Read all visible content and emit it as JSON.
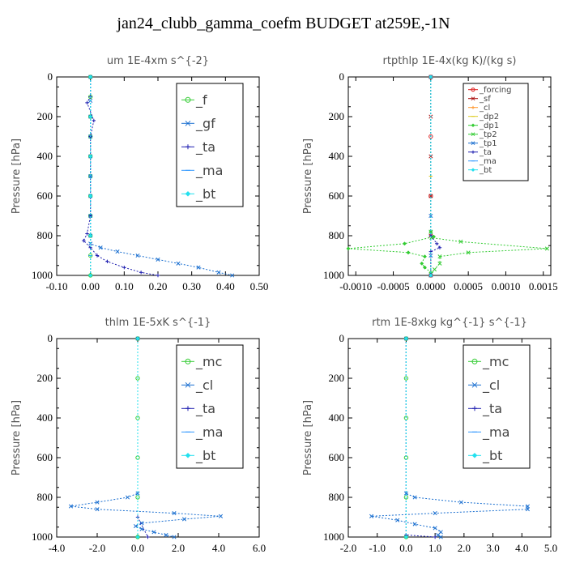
{
  "page": {
    "title": "jan24_clubb_gamma_coefm  BUDGET at259E,-1N"
  },
  "colors": {
    "green": "#33cc33",
    "blue": "#1a6fd0",
    "navy": "#1f1fb0",
    "lightblue": "#3399ff",
    "cyan": "#22e0ee",
    "red": "#dd2222",
    "darkred": "#aa1111",
    "orange": "#ff9933",
    "yellow": "#ddcc22",
    "axis": "#000000"
  },
  "chart_data": [
    {
      "type": "line",
      "title": "um  1E-4xm s^{-2}",
      "ylabel": "Pressure [hPa]",
      "xlim": [
        -0.1,
        0.5
      ],
      "ylim": [
        1000,
        0
      ],
      "xticks": [
        "-0.10",
        "0.00",
        "0.10",
        "0.20",
        "0.30",
        "0.40",
        "0.50"
      ],
      "yticks": [
        "0",
        "200",
        "400",
        "600",
        "800",
        "1000"
      ],
      "legend_position": "top-right",
      "series": [
        {
          "name": "_f",
          "color": "green",
          "marker": "o",
          "points": [
            [
              0.0,
              0
            ],
            [
              0.0,
              100
            ],
            [
              0.0,
              200
            ],
            [
              0.0,
              300
            ],
            [
              0.0,
              400
            ],
            [
              0.0,
              500
            ],
            [
              0.0,
              600
            ],
            [
              0.0,
              700
            ],
            [
              0.0,
              800
            ],
            [
              0.0,
              900
            ],
            [
              0.0,
              1000
            ]
          ]
        },
        {
          "name": "_gf",
          "color": "blue",
          "marker": "x",
          "points": [
            [
              0.0,
              0
            ],
            [
              0.0,
              120
            ],
            [
              0.0,
              200
            ],
            [
              0.0,
              300
            ],
            [
              0.0,
              400
            ],
            [
              0.0,
              500
            ],
            [
              0.0,
              600
            ],
            [
              0.0,
              700
            ],
            [
              0.0,
              800
            ],
            [
              0.0,
              840
            ],
            [
              0.03,
              860
            ],
            [
              0.08,
              880
            ],
            [
              0.14,
              900
            ],
            [
              0.2,
              920
            ],
            [
              0.26,
              940
            ],
            [
              0.32,
              960
            ],
            [
              0.38,
              985
            ],
            [
              0.42,
              1000
            ]
          ]
        },
        {
          "name": "_ta",
          "color": "navy",
          "marker": "+",
          "points": [
            [
              0.0,
              0
            ],
            [
              0.0,
              100
            ],
            [
              -0.01,
              130
            ],
            [
              0.01,
              220
            ],
            [
              0.0,
              300
            ],
            [
              0.0,
              500
            ],
            [
              0.0,
              700
            ],
            [
              -0.01,
              790
            ],
            [
              -0.02,
              825
            ],
            [
              0.0,
              860
            ],
            [
              0.02,
              900
            ],
            [
              0.05,
              930
            ],
            [
              0.1,
              960
            ],
            [
              0.15,
              985
            ],
            [
              0.2,
              1000
            ]
          ]
        },
        {
          "name": "_ma",
          "color": "lightblue",
          "marker": "-",
          "points": [
            [
              0.0,
              0
            ],
            [
              0.0,
              500
            ],
            [
              0.0,
              900
            ],
            [
              0.0,
              1000
            ]
          ]
        },
        {
          "name": "_bt",
          "color": "cyan",
          "marker": "diamond",
          "points": [
            [
              0.0,
              0
            ],
            [
              0.0,
              200
            ],
            [
              0.0,
              400
            ],
            [
              0.0,
              600
            ],
            [
              0.0,
              800
            ],
            [
              0.0,
              1000
            ]
          ]
        }
      ]
    },
    {
      "type": "line",
      "title": "rtpthlp  1E-4x(kg K)/(kg s)",
      "ylabel": "Pressure [hPa]",
      "xlim": [
        -0.0011,
        0.0016
      ],
      "ylim": [
        1000,
        0
      ],
      "xticks": [
        "-0.0010",
        "-0.0005",
        "0.0000",
        "0.0005",
        "0.0010",
        "0.0015"
      ],
      "yticks": [
        "0",
        "200",
        "400",
        "600",
        "800",
        "1000"
      ],
      "legend_position": "top-right",
      "series": [
        {
          "name": "_forcing",
          "color": "red",
          "marker": "o",
          "points": [
            [
              0.0,
              0
            ],
            [
              0.0,
              300
            ],
            [
              0.0,
              600
            ],
            [
              0.0,
              1000
            ]
          ]
        },
        {
          "name": "_sf",
          "color": "darkred",
          "marker": "x",
          "points": [
            [
              0.0,
              0
            ],
            [
              0.0,
              200
            ],
            [
              0.0,
              400
            ],
            [
              0.0,
              600
            ],
            [
              0.0,
              800
            ],
            [
              0.0,
              1000
            ]
          ]
        },
        {
          "name": "_cl",
          "color": "orange",
          "marker": "+",
          "points": [
            [
              0.0,
              0
            ],
            [
              0.0,
              500
            ],
            [
              0.0,
              1000
            ]
          ]
        },
        {
          "name": "_dp2",
          "color": "yellow",
          "marker": "-",
          "points": [
            [
              0.0,
              0
            ],
            [
              0.0,
              500
            ],
            [
              0.0,
              1000
            ]
          ]
        },
        {
          "name": "_dp1",
          "color": "green",
          "marker": "diamond",
          "points": [
            [
              0.0,
              0
            ],
            [
              0.0,
              780
            ],
            [
              4e-05,
              805
            ],
            [
              -0.00035,
              840
            ],
            [
              -0.0011,
              865
            ],
            [
              -0.0003,
              885
            ],
            [
              -8e-05,
              905
            ],
            [
              -0.00012,
              940
            ],
            [
              -8e-05,
              960
            ],
            [
              0.0,
              985
            ],
            [
              0.0,
              1000
            ]
          ]
        },
        {
          "name": "_tp2",
          "color": "green",
          "marker": "x",
          "points": [
            [
              0.0,
              0
            ],
            [
              0.0,
              780
            ],
            [
              1e-05,
              810
            ],
            [
              0.0004,
              830
            ],
            [
              0.00155,
              865
            ],
            [
              0.0005,
              885
            ],
            [
              0.00012,
              905
            ],
            [
              0.00012,
              940
            ],
            [
              5e-05,
              970
            ],
            [
              0.0,
              1000
            ]
          ]
        },
        {
          "name": "_tp1",
          "color": "blue",
          "marker": "x",
          "points": [
            [
              0.0,
              0
            ],
            [
              0.0,
              700
            ],
            [
              0.0,
              900
            ],
            [
              0.0,
              1000
            ]
          ]
        },
        {
          "name": "_ta",
          "color": "navy",
          "marker": "+",
          "points": [
            [
              0.0,
              0
            ],
            [
              0.0,
              800
            ],
            [
              8e-05,
              840
            ],
            [
              0.00012,
              860
            ],
            [
              0.0,
              880
            ],
            [
              0.0,
              1000
            ]
          ]
        },
        {
          "name": "_ma",
          "color": "lightblue",
          "marker": "-",
          "points": [
            [
              0.0,
              0
            ],
            [
              0.0,
              1000
            ]
          ]
        },
        {
          "name": "_bt",
          "color": "cyan",
          "marker": "diamond",
          "points": [
            [
              0.0,
              0
            ],
            [
              0.0,
              1000
            ]
          ]
        }
      ]
    },
    {
      "type": "line",
      "title": "thlm  1E-5xK s^{-1}",
      "ylabel": "Pressure [hPa]",
      "xlim": [
        -4.0,
        6.0
      ],
      "ylim": [
        1000,
        0
      ],
      "xticks": [
        "-4.0",
        "-2.0",
        "0.0",
        "2.0",
        "4.0",
        "6.0"
      ],
      "yticks": [
        "0",
        "200",
        "400",
        "600",
        "800",
        "1000"
      ],
      "legend_position": "top-right",
      "series": [
        {
          "name": "_mc",
          "color": "green",
          "marker": "o",
          "points": [
            [
              0.0,
              0
            ],
            [
              0.0,
              200
            ],
            [
              0.0,
              400
            ],
            [
              0.0,
              600
            ],
            [
              0.0,
              800
            ],
            [
              0.0,
              1000
            ]
          ]
        },
        {
          "name": "_cl",
          "color": "blue",
          "marker": "x",
          "points": [
            [
              0.0,
              0
            ],
            [
              0.0,
              780
            ],
            [
              -0.5,
              800
            ],
            [
              -2.0,
              825
            ],
            [
              -3.3,
              845
            ],
            [
              -2.0,
              860
            ],
            [
              1.8,
              880
            ],
            [
              4.1,
              895
            ],
            [
              2.3,
              910
            ],
            [
              0.2,
              930
            ],
            [
              -0.1,
              945
            ],
            [
              0.2,
              960
            ],
            [
              0.8,
              975
            ],
            [
              1.4,
              990
            ],
            [
              1.8,
              1000
            ]
          ]
        },
        {
          "name": "_ta",
          "color": "navy",
          "marker": "+",
          "points": [
            [
              0.0,
              0
            ],
            [
              0.0,
              900
            ],
            [
              0.5,
              1000
            ]
          ]
        },
        {
          "name": "_ma",
          "color": "lightblue",
          "marker": "-",
          "points": [
            [
              0.0,
              0
            ],
            [
              0.0,
              1000
            ]
          ]
        },
        {
          "name": "_bt",
          "color": "cyan",
          "marker": "diamond",
          "points": [
            [
              0.0,
              0
            ],
            [
              0.0,
              1000
            ]
          ]
        }
      ]
    },
    {
      "type": "line",
      "title": "rtm  1E-8xkg kg^{-1} s^{-1}",
      "ylabel": "Pressure [hPa]",
      "xlim": [
        -2.0,
        5.0
      ],
      "ylim": [
        1000,
        0
      ],
      "xticks": [
        "-2.0",
        "-1.0",
        "0.0",
        "1.0",
        "2.0",
        "3.0",
        "4.0",
        "5.0"
      ],
      "yticks": [
        "0",
        "200",
        "400",
        "600",
        "800",
        "1000"
      ],
      "legend_position": "top-right",
      "series": [
        {
          "name": "_mc",
          "color": "green",
          "marker": "o",
          "points": [
            [
              0.0,
              0
            ],
            [
              0.0,
              200
            ],
            [
              0.0,
              400
            ],
            [
              0.0,
              600
            ],
            [
              0.0,
              800
            ],
            [
              0.0,
              1000
            ]
          ]
        },
        {
          "name": "_cl",
          "color": "blue",
          "marker": "x",
          "points": [
            [
              0.0,
              0
            ],
            [
              0.0,
              780
            ],
            [
              0.3,
              800
            ],
            [
              1.9,
              825
            ],
            [
              4.2,
              845
            ],
            [
              4.2,
              860
            ],
            [
              1.0,
              880
            ],
            [
              -1.2,
              895
            ],
            [
              -0.3,
              915
            ],
            [
              0.3,
              935
            ],
            [
              1.0,
              955
            ],
            [
              1.2,
              975
            ],
            [
              1.1,
              990
            ],
            [
              1.2,
              1000
            ]
          ]
        },
        {
          "name": "_ta",
          "color": "navy",
          "marker": "+",
          "points": [
            [
              0.0,
              0
            ],
            [
              0.0,
              990
            ],
            [
              1.0,
              1000
            ]
          ]
        },
        {
          "name": "_ma",
          "color": "lightblue",
          "marker": "-",
          "points": [
            [
              0.0,
              0
            ],
            [
              0.0,
              1000
            ]
          ]
        },
        {
          "name": "_bt",
          "color": "cyan",
          "marker": "diamond",
          "points": [
            [
              0.0,
              0
            ],
            [
              0.0,
              1000
            ]
          ]
        }
      ]
    }
  ]
}
